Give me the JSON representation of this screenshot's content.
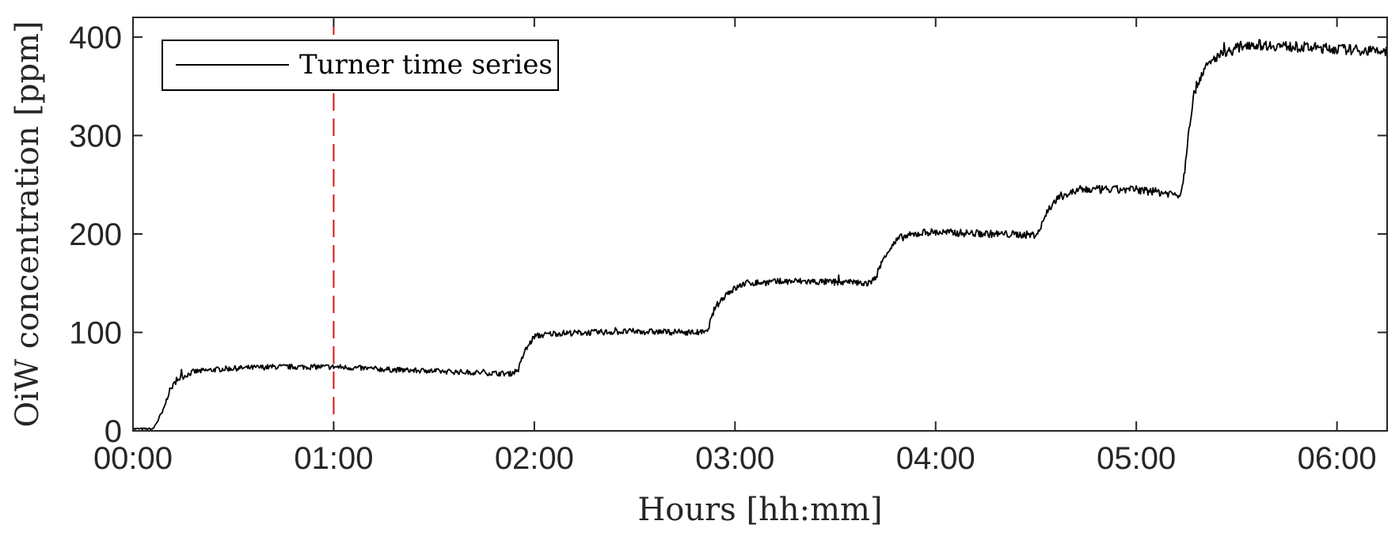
{
  "chart_data": {
    "type": "line",
    "title": "",
    "xlabel": "Hours [hh:mm]",
    "ylabel": "OiW concentration [ppm]",
    "xlim": [
      0,
      6.25
    ],
    "ylim": [
      0,
      420
    ],
    "x_unit": "hours",
    "x_ticks": [
      0,
      1,
      2,
      3,
      4,
      5,
      6
    ],
    "x_tick_labels": [
      "00:00",
      "01:00",
      "02:00",
      "03:00",
      "04:00",
      "05:00",
      "06:00"
    ],
    "y_ticks": [
      0,
      100,
      200,
      300,
      400
    ],
    "y_tick_labels": [
      "0",
      "100",
      "200",
      "300",
      "400"
    ],
    "grid": false,
    "legend": {
      "position": "top-left",
      "entries": [
        "Turner time series"
      ]
    },
    "series": [
      {
        "name": "Turner time series",
        "color": "#000000",
        "noisy": true,
        "points": [
          [
            0.0,
            2
          ],
          [
            0.1,
            2
          ],
          [
            0.15,
            20
          ],
          [
            0.18,
            40
          ],
          [
            0.22,
            52
          ],
          [
            0.3,
            60
          ],
          [
            0.45,
            63
          ],
          [
            0.7,
            65
          ],
          [
            1.0,
            65
          ],
          [
            1.3,
            62
          ],
          [
            1.6,
            60
          ],
          [
            1.88,
            58
          ],
          [
            1.92,
            62
          ],
          [
            1.95,
            80
          ],
          [
            2.0,
            96
          ],
          [
            2.1,
            99
          ],
          [
            2.5,
            101
          ],
          [
            2.8,
            100
          ],
          [
            2.86,
            100
          ],
          [
            2.9,
            125
          ],
          [
            2.96,
            140
          ],
          [
            3.05,
            150
          ],
          [
            3.3,
            152
          ],
          [
            3.68,
            150
          ],
          [
            3.71,
            160
          ],
          [
            3.75,
            180
          ],
          [
            3.82,
            196
          ],
          [
            3.95,
            202
          ],
          [
            4.3,
            200
          ],
          [
            4.5,
            199
          ],
          [
            4.52,
            205
          ],
          [
            4.56,
            225
          ],
          [
            4.62,
            238
          ],
          [
            4.72,
            245
          ],
          [
            5.0,
            245
          ],
          [
            5.22,
            240
          ],
          [
            5.24,
            262
          ],
          [
            5.26,
            305
          ],
          [
            5.29,
            345
          ],
          [
            5.33,
            365
          ],
          [
            5.4,
            380
          ],
          [
            5.55,
            393
          ],
          [
            5.8,
            390
          ],
          [
            6.0,
            388
          ],
          [
            6.25,
            385
          ]
        ]
      }
    ],
    "reference_line": {
      "x": 1.0,
      "color": "#e0101a",
      "style": "dashed"
    }
  }
}
